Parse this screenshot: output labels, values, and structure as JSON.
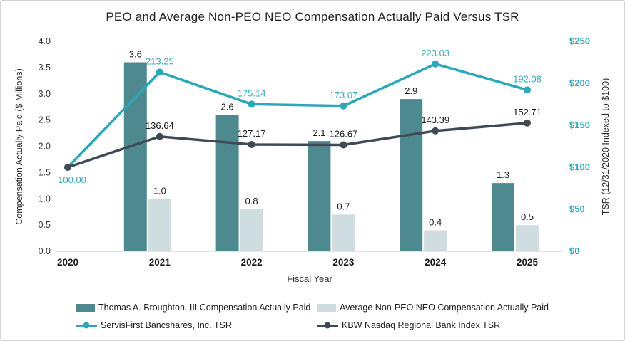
{
  "title": "PEO and Average Non-PEO NEO Compensation Actually Paid Versus TSR",
  "colors": {
    "peo_bar": "#4e898f",
    "neo_bar": "#cfdde1",
    "tsr_line": "#2ca7ba",
    "tsr_label": "#35a9bc",
    "kbw_line": "#3f4a54",
    "axis_line": "#dcdcdc",
    "left_tick_text": "#333333",
    "right_tick_text": "#2ba2b6",
    "value_label_text": "#1a1a1a",
    "axis_title_text": "#2b2b2b"
  },
  "chart_data": {
    "type": "bar+line combo",
    "title": "PEO and Average Non-PEO NEO Compensation Actually Paid Versus TSR",
    "categories": [
      "2020",
      "2021",
      "2022",
      "2023",
      "2024",
      "2025"
    ],
    "xlabel": "Fiscal Year",
    "grid": false,
    "legend_position": "bottom",
    "left_axis": {
      "label": "Compensation Actually Paid ($ Millions)",
      "min": 0,
      "max": 4,
      "ticks": [
        "0.0",
        "0.5",
        "1.0",
        "1.5",
        "2.0",
        "2.5",
        "3.0",
        "3.5",
        "4.0"
      ]
    },
    "right_axis": {
      "label": "TSR (12/31/2020 Indexed to $100)",
      "min": 0,
      "max": 250,
      "ticks": [
        "$0",
        "$50",
        "$100",
        "$150",
        "$200",
        "$250"
      ]
    },
    "series": [
      {
        "name": "Thomas A. Broughton, III Compensation Actually Paid",
        "type": "bar",
        "axis": "left",
        "values": [
          null,
          3.6,
          2.6,
          2.1,
          2.9,
          1.3
        ],
        "labels": [
          "",
          "3.6",
          "2.6",
          "2.1",
          "2.9",
          "1.3"
        ]
      },
      {
        "name": "Average Non-PEO NEO Compensation Actually Paid",
        "type": "bar",
        "axis": "left",
        "values": [
          null,
          1.0,
          0.8,
          0.7,
          0.4,
          0.5
        ],
        "labels": [
          "",
          "1.0",
          "0.8",
          "0.7",
          "0.4",
          "0.5"
        ]
      },
      {
        "name": "ServisFirst Bancshares, Inc. TSR",
        "type": "line",
        "axis": "right",
        "values": [
          100.0,
          213.25,
          175.14,
          173.07,
          223.03,
          192.08
        ],
        "labels": [
          "100.00",
          "213.25",
          "175.14",
          "173.07",
          "223.03",
          "192.08"
        ]
      },
      {
        "name": "KBW Nasdaq Regional Bank Index TSR",
        "type": "line",
        "axis": "right",
        "values": [
          100.0,
          136.64,
          127.17,
          126.67,
          143.39,
          152.71
        ],
        "labels": [
          "",
          "136.64",
          "127.17",
          "126.67",
          "143.39",
          "152.71"
        ]
      }
    ]
  }
}
